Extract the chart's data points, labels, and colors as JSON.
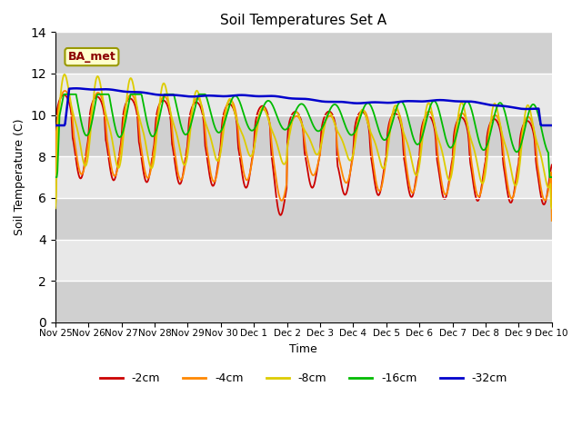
{
  "title": "Soil Temperatures Set A",
  "xlabel": "Time",
  "ylabel": "Soil Temperature (C)",
  "ylim": [
    0,
    14
  ],
  "yticks": [
    0,
    2,
    4,
    6,
    8,
    10,
    12,
    14
  ],
  "legend_label": "BA_met",
  "series_labels": [
    "-2cm",
    "-4cm",
    "-8cm",
    "-16cm",
    "-32cm"
  ],
  "series_colors": [
    "#cc0000",
    "#ff8800",
    "#ddcc00",
    "#00bb00",
    "#0000cc"
  ],
  "background_color": "#ffffff",
  "plot_bg_color": "#e8e8e8",
  "alt_band_color": "#d0d0d0",
  "grid_color": "#ffffff",
  "x_tick_labels": [
    "Nov 25",
    "Nov 26",
    "Nov 27",
    "Nov 28",
    "Nov 29",
    "Nov 30",
    "Dec 1",
    "Dec 2",
    "Dec 3",
    "Dec 4",
    "Dec 5",
    "Dec 6",
    "Dec 7",
    "Dec 8",
    "Dec 9",
    "Dec 10"
  ],
  "figsize": [
    6.4,
    4.8
  ],
  "dpi": 100,
  "num_points": 720
}
